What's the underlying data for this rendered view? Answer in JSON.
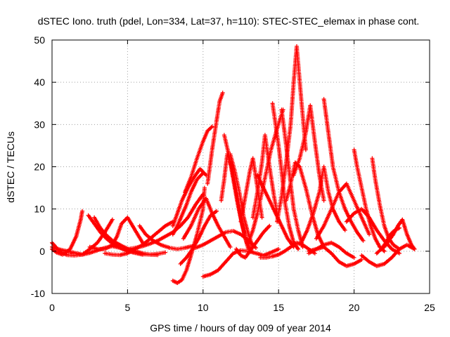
{
  "chart_data": {
    "type": "scatter",
    "title": "dSTEC Iono. truth (pdel, Lon=334, Lat=37, h=110): STEC-STEC_elemax in phase cont.",
    "xlabel": "GPS time / hours of day 009 of year 2014",
    "ylabel": "dSTEC  / TECUs",
    "xlim": [
      0,
      25
    ],
    "ylim": [
      -10,
      50
    ],
    "x_ticks": [
      0,
      5,
      10,
      15,
      20,
      25
    ],
    "y_ticks": [
      -10,
      0,
      10,
      20,
      30,
      40,
      50
    ],
    "x_tick_labels": [
      "0",
      "5",
      "10",
      "15",
      "20",
      "25"
    ],
    "y_tick_labels": [
      "-10",
      "0",
      "10",
      "20",
      "30",
      "40",
      "50"
    ],
    "grid": true,
    "legend": "none",
    "marker": "+",
    "color": "#ff0000",
    "series": [
      {
        "x": [
          0.0,
          0.3,
          0.7,
          1.2,
          1.6,
          1.9,
          2.0
        ],
        "y": [
          0.5,
          -0.3,
          -0.8,
          0.5,
          3.5,
          7.5,
          9.5
        ]
      },
      {
        "x": [
          0.0,
          0.3,
          0.6,
          1.0,
          1.5,
          2.0,
          2.5,
          3.0,
          3.5,
          4.0
        ],
        "y": [
          2.0,
          0.8,
          -0.3,
          -0.9,
          -1.0,
          -0.8,
          0.5,
          2.0,
          4.5,
          7.5
        ]
      },
      {
        "x": [
          0.0,
          0.5,
          1.0,
          1.5,
          2.0,
          2.5,
          3.0,
          3.5,
          4.0,
          4.5,
          5.0,
          5.5,
          6.0
        ],
        "y": [
          1.0,
          0.4,
          0.0,
          -0.4,
          -0.8,
          -0.4,
          0.2,
          0.8,
          1.2,
          0.8,
          0.0,
          -0.4,
          -0.8
        ]
      },
      {
        "x": [
          2.4,
          2.8,
          3.2,
          3.6,
          4.0,
          4.5,
          5.0,
          5.5,
          6.0,
          6.5,
          7.0
        ],
        "y": [
          8.5,
          6.5,
          4.5,
          3.0,
          1.8,
          0.8,
          0.2,
          -0.3,
          -0.7,
          -0.8,
          -0.9
        ]
      },
      {
        "x": [
          2.8,
          3.2,
          3.6,
          4.0,
          4.5,
          5.0,
          5.5,
          6.0,
          6.5,
          7.0,
          7.5
        ],
        "y": [
          8.0,
          5.5,
          3.8,
          2.5,
          1.5,
          0.6,
          0.0,
          -0.5,
          -0.8,
          -0.6,
          -0.3
        ]
      },
      {
        "x": [
          2.5,
          3.0,
          3.5,
          4.0,
          4.3,
          4.6,
          5.0,
          5.5,
          6.0
        ],
        "y": [
          1.0,
          0.5,
          0.5,
          1.5,
          3.5,
          6.5,
          8.0,
          5.0,
          2.0
        ]
      },
      {
        "x": [
          3.5,
          4.0,
          4.5,
          5.0,
          5.5,
          6.0,
          6.5,
          7.0,
          7.5,
          8.0
        ],
        "y": [
          -0.5,
          -0.8,
          -0.9,
          -0.5,
          0.5,
          1.5,
          3.0,
          4.5,
          6.0,
          7.0
        ]
      },
      {
        "x": [
          5.8,
          6.2,
          6.7,
          7.2,
          7.8,
          8.3,
          8.8,
          9.3
        ],
        "y": [
          6.0,
          4.0,
          2.5,
          1.5,
          0.8,
          0.5,
          0.8,
          1.2
        ]
      },
      {
        "x": [
          5.0,
          5.5,
          6.0,
          6.5,
          7.0,
          7.5,
          8.0,
          8.5,
          9.0,
          9.5,
          10.0
        ],
        "y": [
          0.5,
          0.8,
          1.2,
          1.8,
          2.5,
          3.5,
          4.5,
          6.0,
          8.0,
          11.0,
          13.5
        ]
      },
      {
        "x": [
          8.0,
          8.3,
          8.6,
          8.9,
          9.2,
          9.6,
          10.0
        ],
        "y": [
          4.0,
          6.0,
          8.5,
          11.0,
          14.0,
          17.0,
          18.5
        ]
      },
      {
        "x": [
          8.0,
          8.3,
          8.6,
          9.0,
          9.4,
          9.8,
          10.2
        ],
        "y": [
          6.0,
          9.0,
          12.0,
          15.0,
          17.5,
          19.5,
          18.0
        ]
      },
      {
        "x": [
          8.7,
          9.2,
          9.7,
          10.2,
          10.6,
          11.0,
          11.4,
          11.8
        ],
        "y": [
          3.0,
          6.0,
          10.0,
          12.5,
          9.0,
          6.0,
          3.5,
          1.0
        ]
      },
      {
        "x": [
          8.0,
          8.3,
          8.6,
          8.9,
          9.2,
          9.6,
          10.0,
          10.1
        ],
        "y": [
          -7.0,
          -7.5,
          -6.8,
          -4.5,
          -1.0,
          4.0,
          10.0,
          15.0
        ]
      },
      {
        "x": [
          8.5,
          8.9,
          9.3,
          9.7,
          10.1,
          10.5,
          10.9
        ],
        "y": [
          -3.0,
          -1.5,
          0.5,
          3.0,
          6.0,
          8.5,
          9.5
        ]
      },
      {
        "x": [
          8.8,
          9.2,
          9.6,
          10.0,
          10.3,
          10.6
        ],
        "y": [
          14.0,
          17.5,
          22.0,
          26.0,
          28.5,
          29.5
        ]
      },
      {
        "x": [
          9.5,
          10.0,
          10.5,
          11.0,
          11.5,
          12.0,
          12.5,
          13.0,
          13.5
        ],
        "y": [
          0.8,
          1.5,
          2.5,
          3.5,
          4.5,
          4.8,
          4.0,
          2.5,
          0.8
        ]
      },
      {
        "x": [
          10.0,
          10.5,
          11.0,
          11.5,
          12.0,
          12.5,
          13.0,
          13.5,
          14.0,
          14.5,
          15.0
        ],
        "y": [
          -6.0,
          -5.5,
          -4.5,
          -2.5,
          -0.5,
          0.2,
          0.0,
          -0.5,
          -1.0,
          -0.3,
          0.5
        ]
      },
      {
        "x": [
          10.3,
          10.6,
          10.9,
          11.1,
          11.3
        ],
        "y": [
          16.0,
          24.0,
          31.0,
          35.5,
          37.5
        ]
      },
      {
        "x": [
          11.2,
          11.4,
          11.6,
          11.9,
          12.2,
          12.5,
          12.8,
          13.0
        ],
        "y": [
          12.0,
          17.0,
          23.0,
          20.0,
          14.0,
          8.0,
          3.0,
          0.5
        ]
      },
      {
        "x": [
          11.4,
          11.7,
          12.0,
          12.3,
          12.6,
          12.9,
          13.2
        ],
        "y": [
          27.5,
          23.0,
          17.0,
          11.0,
          6.0,
          2.0,
          0.0
        ]
      },
      {
        "x": [
          11.8,
          12.1,
          12.4,
          12.7,
          13.0,
          13.3
        ],
        "y": [
          23.0,
          19.0,
          14.0,
          8.0,
          4.0,
          1.0
        ]
      },
      {
        "x": [
          12.5,
          12.7,
          12.9,
          13.1,
          13.3,
          13.6,
          13.9
        ],
        "y": [
          7.0,
          11.0,
          15.0,
          19.0,
          22.0,
          15.0,
          8.0
        ]
      },
      {
        "x": [
          12.2,
          12.5,
          12.8,
          13.2,
          13.6,
          14.0,
          14.4
        ],
        "y": [
          0.5,
          -1.0,
          -1.5,
          0.5,
          2.5,
          4.5,
          6.0
        ]
      },
      {
        "x": [
          13.0,
          13.3,
          13.6,
          13.9,
          14.2,
          14.5,
          14.9,
          15.3
        ],
        "y": [
          2.0,
          5.0,
          9.0,
          14.0,
          19.0,
          24.0,
          29.0,
          33.5
        ]
      },
      {
        "x": [
          13.3,
          13.6,
          13.9,
          14.1,
          14.4,
          14.7,
          15.0
        ],
        "y": [
          8.0,
          14.0,
          21.0,
          27.5,
          20.0,
          13.0,
          7.0
        ]
      },
      {
        "x": [
          13.6,
          14.0,
          14.4,
          14.8,
          15.2,
          15.6,
          16.0
        ],
        "y": [
          18.0,
          15.0,
          12.0,
          9.0,
          6.0,
          3.0,
          1.0
        ]
      },
      {
        "x": [
          13.8,
          14.2,
          14.6,
          15.0,
          15.4,
          15.8,
          16.2,
          16.6,
          17.0,
          17.4
        ],
        "y": [
          -1.5,
          -1.5,
          -1.2,
          -0.8,
          0.0,
          1.0,
          2.0,
          1.5,
          0.5,
          -0.5
        ]
      },
      {
        "x": [
          14.6,
          14.8,
          15.0,
          15.2,
          15.4,
          15.7,
          16.0,
          16.3
        ],
        "y": [
          35.0,
          30.0,
          25.0,
          19.0,
          12.0,
          6.0,
          2.0,
          0.5
        ]
      },
      {
        "x": [
          15.2,
          15.4,
          15.6,
          15.8,
          16.0,
          16.3,
          16.6
        ],
        "y": [
          33.5,
          28.0,
          22.0,
          16.0,
          10.0,
          5.0,
          1.0
        ]
      },
      {
        "x": [
          14.9,
          15.2,
          15.5,
          15.8,
          16.0,
          16.2,
          16.5,
          16.8
        ],
        "y": [
          7.0,
          13.0,
          21.0,
          30.0,
          40.0,
          48.5,
          36.0,
          24.0
        ]
      },
      {
        "x": [
          15.5,
          15.8,
          16.1,
          16.4,
          16.8,
          17.2,
          17.6,
          18.0
        ],
        "y": [
          12.0,
          16.0,
          21.0,
          20.0,
          15.0,
          9.0,
          4.0,
          1.0
        ]
      },
      {
        "x": [
          16.0,
          16.4,
          16.8,
          17.1,
          17.4,
          17.7,
          18.0
        ],
        "y": [
          18.0,
          22.0,
          28.0,
          34.5,
          26.0,
          18.0,
          12.0
        ]
      },
      {
        "x": [
          16.5,
          16.9,
          17.3,
          17.7,
          18.0,
          18.3,
          18.6,
          19.0,
          19.4
        ],
        "y": [
          2.0,
          5.0,
          9.0,
          14.0,
          20.0,
          14.0,
          10.0,
          7.0,
          5.0
        ]
      },
      {
        "x": [
          17.0,
          17.5,
          18.0,
          18.5,
          19.0,
          19.5,
          20.0
        ],
        "y": [
          -0.5,
          0.5,
          1.5,
          2.0,
          1.0,
          -0.5,
          -1.5
        ]
      },
      {
        "x": [
          18.0,
          18.3,
          18.6,
          19.0,
          19.4,
          19.8,
          20.2,
          20.6
        ],
        "y": [
          36.0,
          28.0,
          20.0,
          14.0,
          10.0,
          7.0,
          4.5,
          2.5
        ]
      },
      {
        "x": [
          17.5,
          18.0,
          18.5,
          19.0,
          19.5,
          20.0,
          20.5,
          21.0
        ],
        "y": [
          3.0,
          6.0,
          10.0,
          14.0,
          16.0,
          12.0,
          8.0,
          4.0
        ]
      },
      {
        "x": [
          17.0,
          17.5,
          18.0,
          18.5,
          19.0,
          19.5,
          20.0,
          20.5
        ],
        "y": [
          0.0,
          0.5,
          1.0,
          -0.5,
          -2.5,
          -3.5,
          -3.0,
          -2.0
        ]
      },
      {
        "x": [
          20.0,
          20.2,
          20.5,
          20.8,
          21.1,
          21.4,
          21.7,
          22.0
        ],
        "y": [
          24.0,
          20.0,
          15.0,
          10.0,
          6.0,
          3.0,
          1.0,
          0.0
        ]
      },
      {
        "x": [
          21.2,
          21.4,
          21.7,
          22.0,
          22.3,
          22.6,
          23.0
        ],
        "y": [
          22.0,
          17.0,
          11.0,
          6.0,
          3.0,
          1.5,
          0.5
        ]
      },
      {
        "x": [
          19.5,
          20.0,
          20.5,
          21.0,
          21.5,
          22.0,
          22.5,
          23.0
        ],
        "y": [
          7.0,
          9.0,
          10.0,
          8.0,
          5.0,
          2.5,
          0.5,
          -0.5
        ]
      },
      {
        "x": [
          20.5,
          21.0,
          21.5,
          22.0,
          22.5,
          23.0,
          23.5,
          24.0
        ],
        "y": [
          -1.0,
          -2.5,
          -3.5,
          -3.0,
          -1.5,
          0.5,
          1.5,
          0.5
        ]
      },
      {
        "x": [
          22.0,
          22.3,
          22.6,
          22.9,
          23.2,
          23.5,
          23.8,
          24.0
        ],
        "y": [
          1.0,
          2.5,
          4.0,
          6.0,
          7.5,
          4.0,
          1.5,
          0.5
        ]
      },
      {
        "x": [
          21.5,
          21.8,
          22.1,
          22.4,
          22.7,
          23.0
        ],
        "y": [
          -0.5,
          0.5,
          2.0,
          4.0,
          5.0,
          5.5
        ]
      }
    ]
  }
}
